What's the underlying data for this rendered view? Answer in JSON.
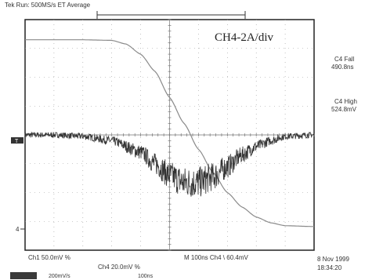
{
  "header": {
    "title": "Tek Run: 500MS/s ET Average"
  },
  "annotations": {
    "channel_scale": "CH4-2A/div",
    "fall_label": "C4 Fall",
    "fall_value": "490.8ns",
    "high_label": "C4 High",
    "high_value": "524.8mV",
    "marker_trig": "T",
    "marker_4": "4"
  },
  "footer": {
    "ch1_readout": "Ch1  50.0mV  %",
    "ch4_readout": "Ch4  20.0mV  %",
    "timebase": "M  100ns  Ch4  \\  60.4mV",
    "date": "8 Nov 1999",
    "time": "18:34:20",
    "tag": "",
    "sub_left": "200mV/s",
    "sub_right": "100ns"
  },
  "chart_data": {
    "type": "line",
    "grid": true,
    "xlim": [
      0,
      10
    ],
    "ylim": [
      0,
      8
    ],
    "xlabel": "",
    "ylabel": "",
    "series": [
      {
        "name": "",
        "color": "#8a8a8a",
        "x": [
          0,
          1,
          2,
          3,
          3.5,
          4,
          4.5,
          5,
          5.5,
          6,
          6.5,
          7,
          7.5,
          8,
          8.5,
          9,
          10
        ],
        "y": [
          7.3,
          7.3,
          7.3,
          7.28,
          7.15,
          6.8,
          6.2,
          5.3,
          4.4,
          3.5,
          2.7,
          2.0,
          1.5,
          1.15,
          0.95,
          0.85,
          0.82
        ]
      },
      {
        "name": "",
        "color": "#333333",
        "noisy": true,
        "x": [
          0,
          1,
          2,
          3,
          4,
          4.5,
          5,
          5.5,
          6,
          6.5,
          7,
          7.5,
          8,
          8.5,
          9,
          10
        ],
        "y": [
          4.0,
          4.0,
          3.95,
          3.8,
          3.4,
          3.0,
          2.6,
          2.35,
          2.35,
          2.55,
          2.9,
          3.3,
          3.6,
          3.8,
          3.95,
          4.0
        ]
      }
    ]
  }
}
